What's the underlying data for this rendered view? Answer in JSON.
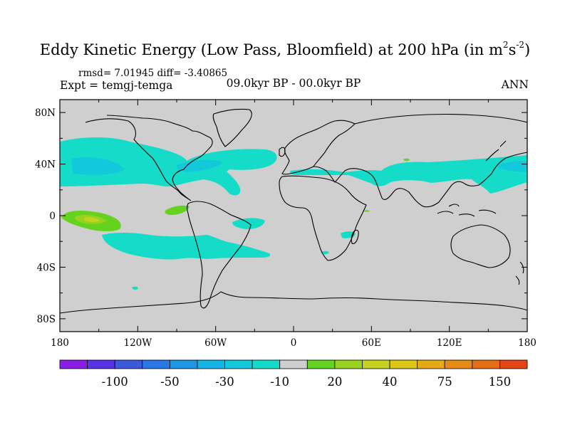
{
  "title": {
    "main": "Eddy Kinetic Energy (Low Pass, Bloomfield) at 200 hPa (in m",
    "exp1": "2",
    "mid": "s",
    "exp2": "-2",
    "close": ")"
  },
  "stats_line": "rmsd= 7.01945 diff= -3.40865",
  "experiment_label": "Expt = temgj-temga",
  "period_label": "09.0kyr BP - 00.0kyr BP",
  "season_label": "ANN",
  "map": {
    "background_color": "#cfcfcf",
    "coastline_color": "#000000",
    "lat_ticks": [
      {
        "value": 80,
        "label": "80N"
      },
      {
        "value": 40,
        "label": "40N"
      },
      {
        "value": 0,
        "label": "0"
      },
      {
        "value": -40,
        "label": "40S"
      },
      {
        "value": -80,
        "label": "80S"
      }
    ],
    "lon_ticks": [
      {
        "value": -180,
        "label": "180"
      },
      {
        "value": -120,
        "label": "120W"
      },
      {
        "value": -60,
        "label": "60W"
      },
      {
        "value": 0,
        "label": "0"
      },
      {
        "value": 60,
        "label": "60E"
      },
      {
        "value": 120,
        "label": "120E"
      },
      {
        "value": 180,
        "label": "180"
      }
    ],
    "lon_range": [
      -180,
      180
    ],
    "lat_range": [
      -90,
      90
    ]
  },
  "colorbar": {
    "colors": [
      "#8a1ee6",
      "#5a32e6",
      "#3c5adc",
      "#2a78e6",
      "#1e96e6",
      "#14b4e6",
      "#14c8dc",
      "#14dcc8",
      "#cfcfcf",
      "#64d21e",
      "#96d21e",
      "#c8d21e",
      "#dcc814",
      "#e6aa14",
      "#e68c14",
      "#e66e14",
      "#e64614"
    ],
    "labels": [
      "-100",
      "-50",
      "-30",
      "-10",
      "20",
      "40",
      "75",
      "150"
    ]
  },
  "chart_data": {
    "type": "heatmap",
    "title": "Eddy Kinetic Energy (Low Pass, Bloomfield) at 200 hPa (in m2s-2)",
    "x_range": [
      -180,
      180
    ],
    "y_range": [
      -90,
      90
    ],
    "legend_levels": [
      "-100",
      "-50",
      "-30",
      "-10",
      "20",
      "40",
      "75",
      "150"
    ],
    "regions": [
      {
        "name": "north pacific / north america / north atlantic band",
        "level": "-10 to -30",
        "lon": [
          -180,
          -30
        ],
        "lat": [
          20,
          50
        ]
      },
      {
        "name": "eurasian jet band",
        "level": "-10",
        "lon": [
          25,
          180
        ],
        "lat": [
          25,
          42
        ]
      },
      {
        "name": "central pacific positive",
        "level": "20 to 40",
        "lon": [
          -177,
          -128
        ],
        "lat": [
          -12,
          4
        ]
      },
      {
        "name": "south america positive",
        "level": "20",
        "lon": [
          -97,
          -80
        ],
        "lat": [
          -3,
          5
        ]
      },
      {
        "name": "south pacific negative",
        "level": "-10",
        "lon": [
          -145,
          -30
        ],
        "lat": [
          -35,
          -10
        ]
      }
    ]
  }
}
